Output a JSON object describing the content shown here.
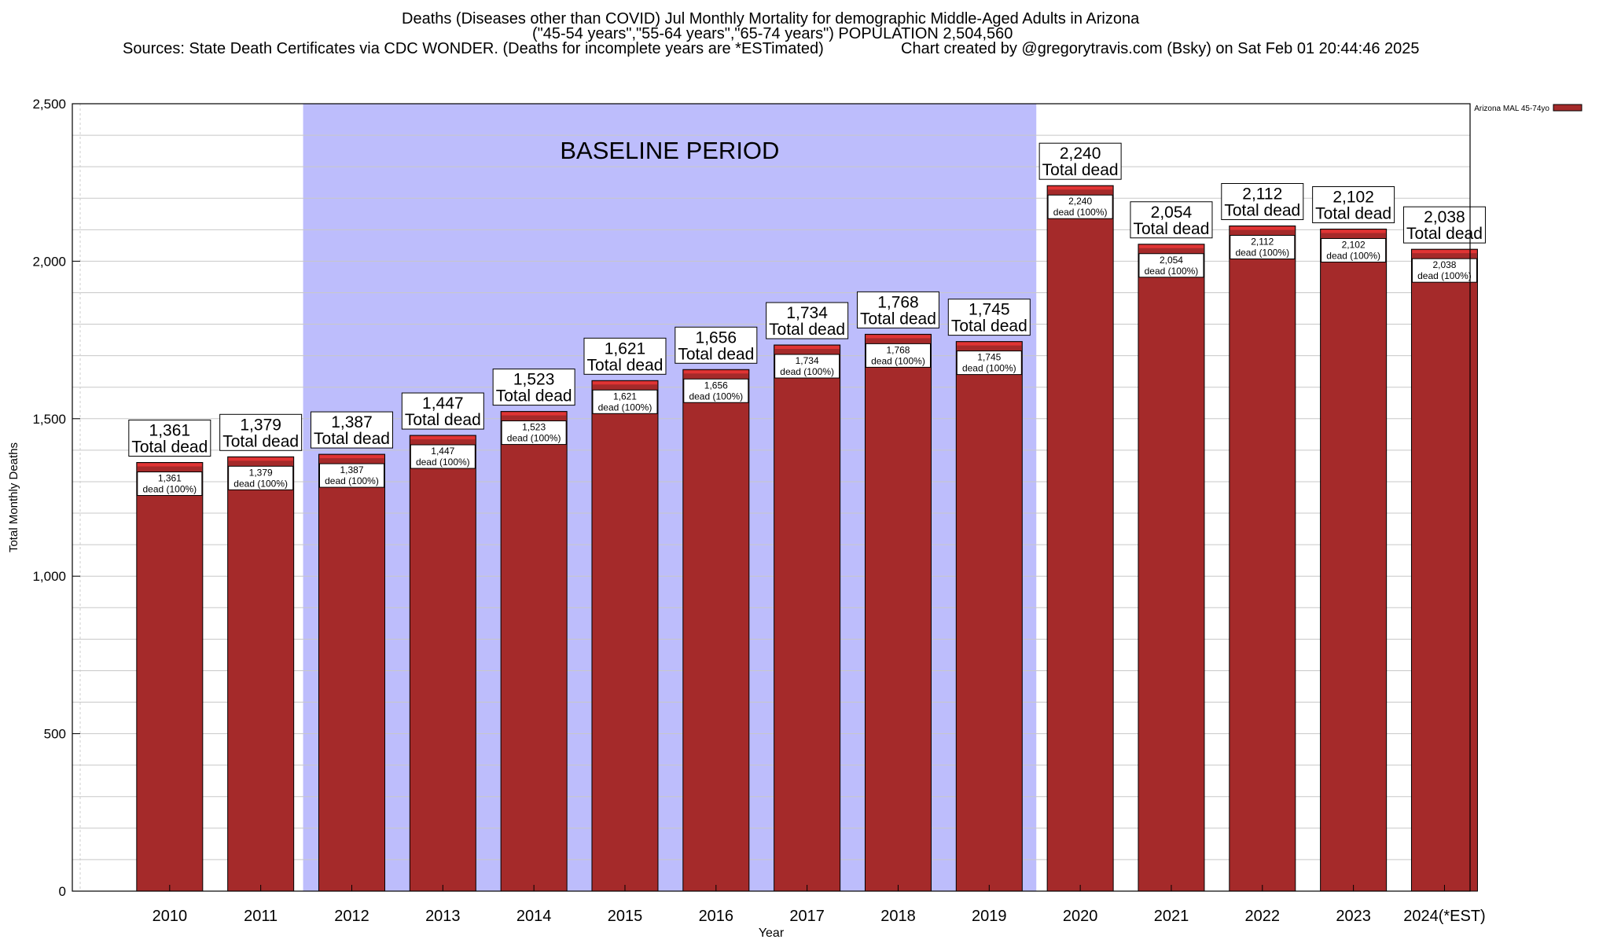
{
  "title": {
    "line1": "Deaths (Diseases other than COVID) Jul Monthly Mortality for demographic Middle-Aged Adults in Arizona",
    "line2": "(\"45-54 years\",\"55-64 years\",\"65-74 years\") POPULATION 2,504,560",
    "line3_left": "Sources: State Death Certificates via CDC WONDER. (Deaths for incomplete years are *ESTimated)",
    "line3_right": "Chart created by @gregorytravis.com (Bsky) on Sat Feb 01 20:44:46 2025"
  },
  "chart_data": {
    "type": "bar",
    "xlabel": "Year",
    "ylabel": "Total Monthly Deaths",
    "ylim": [
      0,
      2500
    ],
    "yticks": [
      0,
      500,
      1000,
      1500,
      2000,
      2500
    ],
    "ytick_labels": [
      "0",
      "500",
      "1,000",
      "1,500",
      "2,000",
      "2,500"
    ],
    "grid": true,
    "legend_position": "top-right",
    "categories": [
      "2010",
      "2011",
      "2012",
      "2013",
      "2014",
      "2015",
      "2016",
      "2017",
      "2018",
      "2019",
      "2020",
      "2021",
      "2022",
      "2023",
      "2024(*EST)"
    ],
    "series": [
      {
        "name": "Arizona MAL 45-74yo",
        "color": "#a52a2a",
        "values": [
          1361,
          1379,
          1387,
          1447,
          1523,
          1621,
          1656,
          1734,
          1768,
          1745,
          2240,
          2054,
          2112,
          2102,
          2038
        ]
      }
    ],
    "value_labels": [
      "1,361",
      "1,379",
      "1,387",
      "1,447",
      "1,523",
      "1,621",
      "1,656",
      "1,734",
      "1,768",
      "1,745",
      "2,240",
      "2,054",
      "2,112",
      "2,102",
      "2,038"
    ],
    "total_label_suffix": "Total dead",
    "inner_label_suffix": "dead (100%)",
    "baseline_period": {
      "label": "BASELINE PERIOD",
      "start_category": "2012",
      "end_category": "2019",
      "color": "#bdbdfc"
    },
    "bar_top_color": "#e03434"
  }
}
